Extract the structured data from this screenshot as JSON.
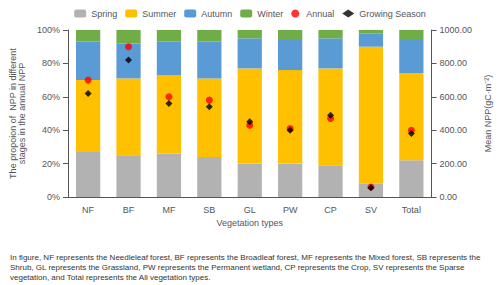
{
  "chart_data": {
    "type": "bar",
    "stacked": true,
    "categories": [
      "NF",
      "BF",
      "MF",
      "SB",
      "GL",
      "PW",
      "CP",
      "SV",
      "Total"
    ],
    "xlabel": "Vegetation types",
    "ylabel": "The propoion of  NPP in different\nstages in the annual NPP",
    "y2label": "Mean NPP(gC·m⁻²)",
    "ylim": [
      0,
      100
    ],
    "yticks": [
      {
        "value": 0,
        "label": "0%"
      },
      {
        "value": 20,
        "label": "20%"
      },
      {
        "value": 40,
        "label": "40%"
      },
      {
        "value": 60,
        "label": "60%"
      },
      {
        "value": 80,
        "label": "80%"
      },
      {
        "value": 100,
        "label": "100%"
      }
    ],
    "y2lim": [
      0,
      1000
    ],
    "y2ticks": [
      {
        "value": 0,
        "label": "0.00"
      },
      {
        "value": 200,
        "label": "200.00"
      },
      {
        "value": 400,
        "label": "400.00"
      },
      {
        "value": 600,
        "label": "600.00"
      },
      {
        "value": 800,
        "label": "800.00"
      },
      {
        "value": 1000,
        "label": "1000.00"
      }
    ],
    "series": [
      {
        "name": "Spring",
        "color": "#b2b2b2",
        "values": [
          27,
          25,
          26,
          24,
          20,
          20,
          19,
          8,
          22
        ]
      },
      {
        "name": "Summer",
        "color": "#ffc000",
        "values": [
          43,
          46,
          47,
          47,
          57,
          56,
          58,
          82,
          52
        ]
      },
      {
        "name": "Autumn",
        "color": "#5b9bd5",
        "values": [
          23,
          21,
          20,
          22,
          18,
          18,
          18,
          8,
          20
        ]
      },
      {
        "name": "Winter",
        "color": "#70ad47",
        "values": [
          7,
          8,
          7,
          7,
          5,
          6,
          5,
          2,
          6
        ]
      },
      {
        "name": "Annual",
        "type": "scatter",
        "axis": "y2",
        "color": "#ff0000",
        "marker": "circle",
        "values": [
          700,
          900,
          600,
          580,
          430,
          410,
          470,
          60,
          400
        ]
      },
      {
        "name": "Growing Season",
        "type": "scatter",
        "axis": "y2",
        "color": "#000000",
        "marker": "diamond",
        "values": [
          620,
          820,
          560,
          540,
          450,
          400,
          490,
          55,
          380
        ]
      }
    ],
    "legend": "top",
    "grid": false,
    "annotations": [
      "In figure, NF represents the Needleleaf forest, BF represents the Broadleaf forest, MF represents the Mixed forest, SB represents the Shrub, GL represents the Grassland, PW represents the Permanent wetland, CP represents the Crop, SV represents the Sparse vegetation, and Total represents the All vegetation types."
    ]
  }
}
